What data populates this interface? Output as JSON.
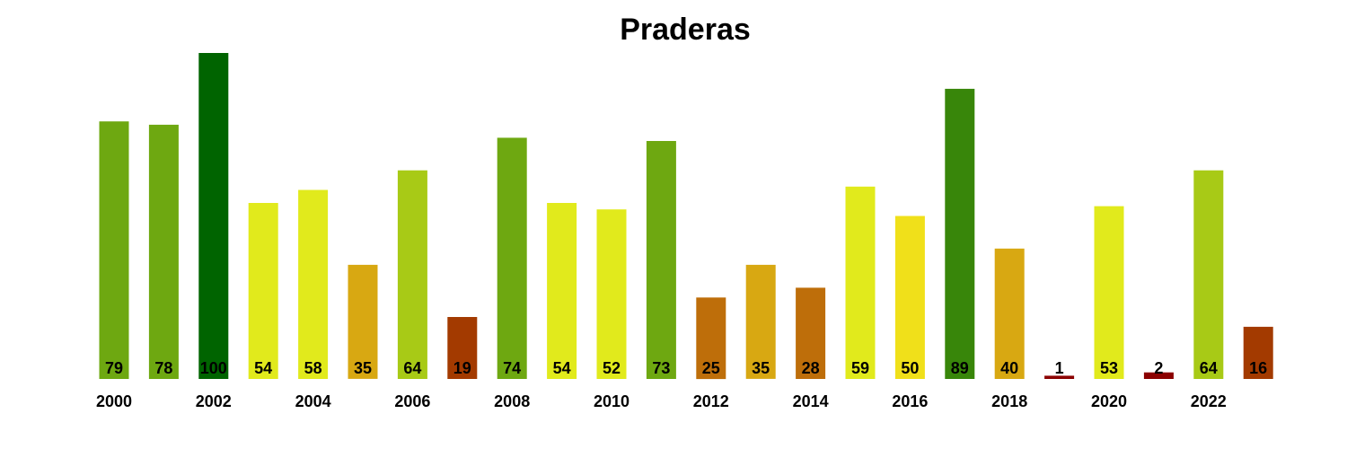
{
  "chart_data": {
    "type": "bar",
    "title": "Praderas",
    "xlabel": "",
    "ylabel": "",
    "ylim": [
      0,
      100
    ],
    "grid": false,
    "legend": "none",
    "categories": [
      2000,
      2001,
      2002,
      2003,
      2004,
      2005,
      2006,
      2007,
      2008,
      2009,
      2010,
      2011,
      2012,
      2013,
      2014,
      2015,
      2016,
      2017,
      2018,
      2019,
      2020,
      2021,
      2022,
      2023
    ],
    "values": [
      79,
      78,
      100,
      54,
      58,
      35,
      64,
      19,
      74,
      54,
      52,
      73,
      25,
      35,
      28,
      59,
      50,
      89,
      40,
      1,
      53,
      2,
      64,
      16
    ],
    "colors": [
      "#6ea811",
      "#6ea811",
      "#006400",
      "#e1ea1c",
      "#e1ea1c",
      "#d8a812",
      "#a8ca16",
      "#a33a00",
      "#6ea811",
      "#e1ea1c",
      "#e1ea1c",
      "#6ea811",
      "#be6e0a",
      "#d8a812",
      "#be6e0a",
      "#e1ea1c",
      "#f0e01a",
      "#38860a",
      "#d8a812",
      "#8b0000",
      "#e1ea1c",
      "#8b0000",
      "#a8ca16",
      "#a33a00"
    ],
    "tick_labels": [
      "2000",
      "2002",
      "2004",
      "2006",
      "2008",
      "2010",
      "2012",
      "2014",
      "2016",
      "2018",
      "2020",
      "2022"
    ]
  }
}
